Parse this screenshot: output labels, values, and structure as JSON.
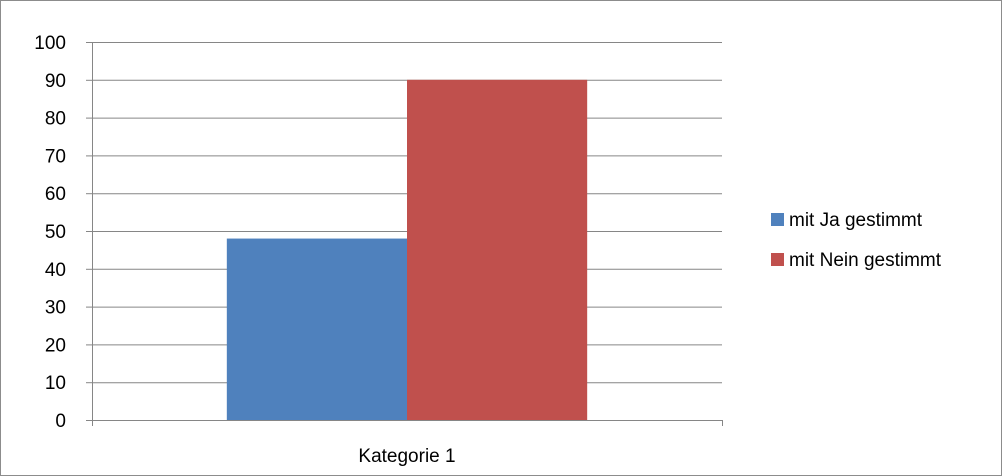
{
  "chart_data": {
    "type": "bar",
    "categories": [
      "Kategorie 1"
    ],
    "series": [
      {
        "name": "mit Ja gestimmt",
        "values": [
          48
        ],
        "color": "#4f81bd"
      },
      {
        "name": "mit Nein gestimmt",
        "values": [
          90
        ],
        "color": "#c0504d"
      }
    ],
    "ylim": [
      0,
      100
    ],
    "yticks": [
      0,
      10,
      20,
      30,
      40,
      50,
      60,
      70,
      80,
      90,
      100
    ],
    "grid": true,
    "legend": "right",
    "axis_color": "#868686",
    "grid_color": "#868686"
  }
}
